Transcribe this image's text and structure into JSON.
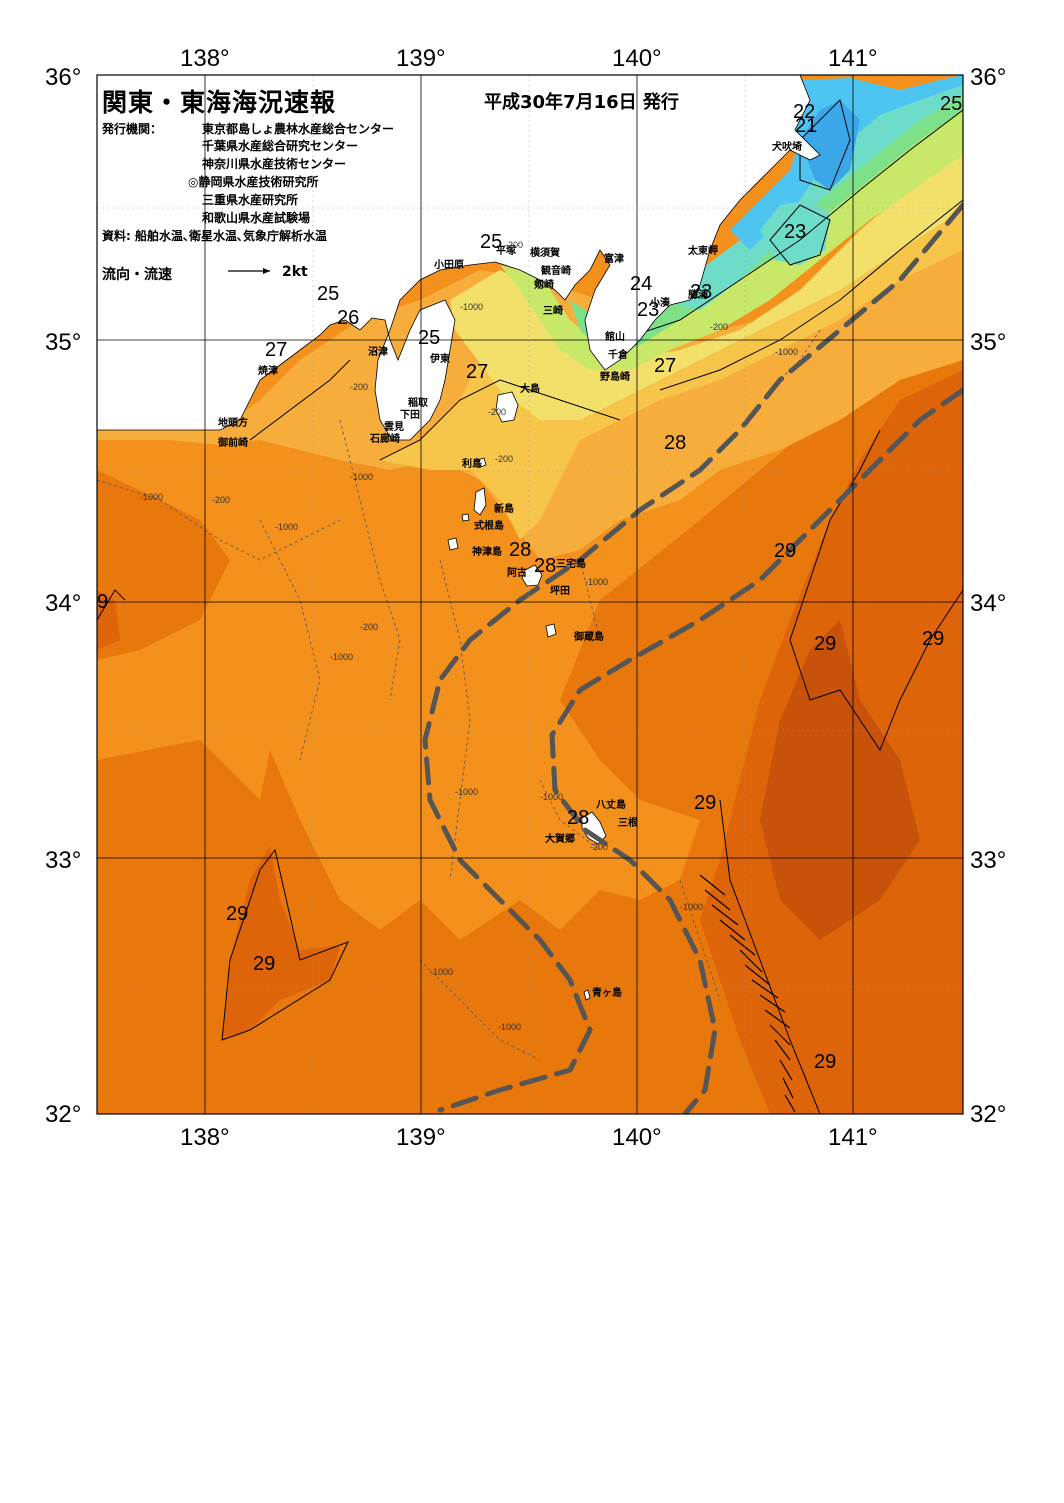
{
  "header": {
    "title": "関東・東海海況速報",
    "issue_date": "平成30年7月16日 発行",
    "agency_label": "発行機関：",
    "agencies": [
      "東京都島しょ農林水産総合センター",
      "千葉県水産総合研究センター",
      "神奈川県水産技術センター",
      "◎静岡県水産技術研究所",
      "三重県水産研究所",
      "和歌山県水産試験場"
    ],
    "sources": "資料: 船舶水温､衛星水温､気象庁解析水温",
    "flow_legend_label": "流向・流速",
    "flow_legend_value": "2kt"
  },
  "axes": {
    "lon_labels": [
      "138°",
      "139°",
      "140°",
      "141°"
    ],
    "lat_labels": [
      "36°",
      "35°",
      "34°",
      "33°",
      "32°"
    ]
  },
  "colors": {
    "land": "#ffffff",
    "temp_21": "#3aa8e8",
    "temp_22": "#4ec5f0",
    "temp_23": "#6ddcc8",
    "temp_24": "#7fe08a",
    "temp_25": "#c8e86a",
    "temp_26": "#f2e06a",
    "temp_27": "#f7c54a",
    "temp_27_5": "#f6ad3c",
    "temp_28": "#f4901c",
    "temp_28_5": "#e8780c",
    "temp_29": "#dd6408",
    "temp_29_5": "#c8520a",
    "kuroshio_axis": "#555555"
  },
  "place_names": [
    "犬吠埼",
    "太東岬",
    "勝浦",
    "小湊",
    "富津",
    "横須賀",
    "観音崎",
    "剱崎",
    "三崎",
    "平塚",
    "小田原",
    "館山",
    "千倉",
    "野島崎",
    "大島",
    "伊東",
    "稲取",
    "下田",
    "雲見",
    "石廊崎",
    "沼津",
    "焼津",
    "地頭方",
    "御前崎",
    "利島",
    "新島",
    "式根島",
    "神津島",
    "三宅島",
    "阿古",
    "坪田",
    "御蔵島",
    "八丈島",
    "三根",
    "大賀郷",
    "青ヶ島"
  ],
  "temperature_labels": [
    "22",
    "21",
    "25",
    "23",
    "25",
    "24",
    "23",
    "23",
    "25",
    "26",
    "27",
    "25",
    "27",
    "27",
    "28",
    "28",
    "28",
    "29",
    "29",
    "29",
    "29",
    "28",
    "29",
    "29",
    "29",
    "9"
  ],
  "depth_labels": [
    "-200",
    "-1000"
  ]
}
